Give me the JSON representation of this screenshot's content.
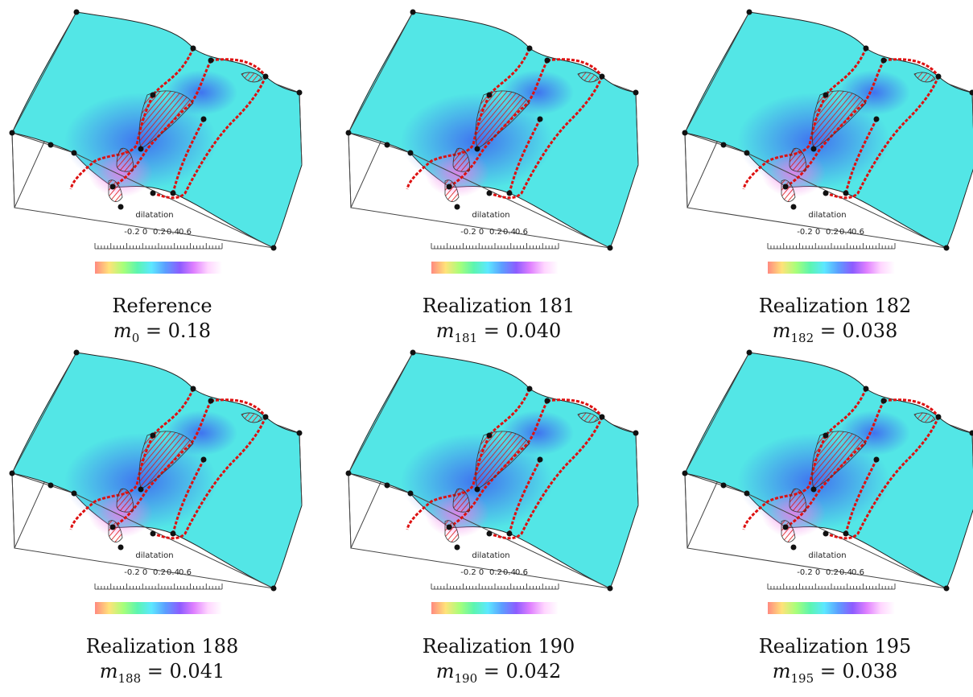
{
  "colorbar": {
    "label": "dilatation",
    "ticks": [
      "-0.2",
      "0",
      "0.2",
      "0.4",
      "0.6"
    ],
    "gradient": [
      "#ff8a80",
      "#ffe27a",
      "#a8ff7a",
      "#5cf5b0",
      "#5ce8ff",
      "#5c9dff",
      "#8c5cff",
      "#e080ff",
      "#ffd6ff",
      "#ffffff"
    ]
  },
  "colors": {
    "surface": "#53e6e6",
    "strain_low": "#3f6df0",
    "strain_high": "#f07be8",
    "seam_red": "#dd1111",
    "outline": "#222222"
  },
  "panels": [
    {
      "name": "Reference",
      "m_symbol": "m",
      "m_sub": "0",
      "m_value": "= 0.18"
    },
    {
      "name": "Realization 181",
      "m_symbol": "m",
      "m_sub": "181",
      "m_value": "= 0.040"
    },
    {
      "name": "Realization 182",
      "m_symbol": "m",
      "m_sub": "182",
      "m_value": "= 0.038"
    },
    {
      "name": "Realization 188",
      "m_symbol": "m",
      "m_sub": "188",
      "m_value": "= 0.041"
    },
    {
      "name": "Realization 190",
      "m_symbol": "m",
      "m_sub": "190",
      "m_value": "= 0.042"
    },
    {
      "name": "Realization 195",
      "m_symbol": "m",
      "m_sub": "195",
      "m_value": "= 0.038"
    }
  ]
}
